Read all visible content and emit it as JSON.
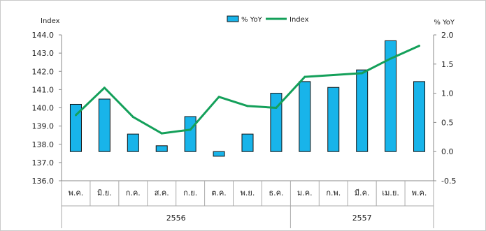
{
  "chart_data": {
    "type": "bar+line",
    "categories": [
      "พ.ค.",
      "มิ.ย.",
      "ก.ค.",
      "ส.ค.",
      "ก.ย.",
      "ต.ค.",
      "พ.ย.",
      "ธ.ค.",
      "ม.ค.",
      "ก.พ.",
      "มี.ค.",
      "เม.ย.",
      "พ.ค."
    ],
    "years": [
      {
        "label": "2556",
        "from": 0,
        "to": 7
      },
      {
        "label": "2557",
        "from": 8,
        "to": 12
      }
    ],
    "series": [
      {
        "name": "% YoY",
        "type": "bar",
        "axis": "right",
        "color": "#18b4ea",
        "values": [
          0.81,
          0.9,
          0.3,
          0.1,
          0.6,
          -0.08,
          0.3,
          1.0,
          1.2,
          1.1,
          1.4,
          1.9,
          1.2
        ]
      },
      {
        "name": "Index",
        "type": "line",
        "axis": "left",
        "color": "#14a05a",
        "values": [
          139.6,
          141.1,
          139.5,
          138.6,
          138.8,
          140.6,
          140.1,
          140.0,
          141.7,
          141.8,
          141.9,
          142.7,
          143.4
        ]
      }
    ],
    "left_axis": {
      "title": "Index",
      "ylim": [
        136.0,
        144.0
      ],
      "ticks": [
        "136.0",
        "137.0",
        "138.0",
        "139.0",
        "140.0",
        "141.0",
        "142.0",
        "143.0",
        "144.0"
      ]
    },
    "right_axis": {
      "title": "% YoY",
      "ylim": [
        -0.5,
        2.0
      ],
      "ticks": [
        "-0.5",
        "0.0",
        "0.5",
        "1.0",
        "1.5",
        "2.0"
      ]
    },
    "legend_position": "top-center",
    "grid": false
  }
}
